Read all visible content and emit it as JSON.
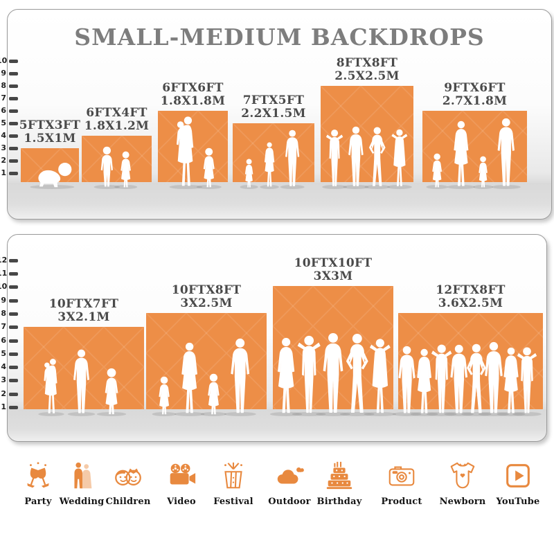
{
  "title": "SMALL-MEDIUM BACKDROPS",
  "accent_color": "#ED8E47",
  "silhouette_color": "#FFFFFF",
  "panels": [
    {
      "name": "small-backdrops",
      "ruler": {
        "min": 1,
        "max": 10
      },
      "backdrops": [
        {
          "size_ft": "5FTX3FT",
          "size_m": "1.5X1M",
          "width_ft": 5,
          "height_ft": 3,
          "people": "crawling-baby"
        },
        {
          "size_ft": "6FTX4FT",
          "size_m": "1.8X1.2M",
          "width_ft": 6,
          "height_ft": 4,
          "people": "boy-and-girl"
        },
        {
          "size_ft": "6FTX6FT",
          "size_m": "1.8X1.8M",
          "width_ft": 6,
          "height_ft": 6,
          "people": "mother-with-baby-and-girl"
        },
        {
          "size_ft": "7FTX5FT",
          "size_m": "2.2X1.5M",
          "width_ft": 7,
          "height_ft": 5,
          "people": "child-woman-man"
        },
        {
          "size_ft": "8FTX8FT",
          "size_m": "2.5X2.5M",
          "width_ft": 8,
          "height_ft": 8,
          "people": "four-adults"
        },
        {
          "size_ft": "9FTX6FT",
          "size_m": "2.7X1.8M",
          "width_ft": 9,
          "height_ft": 6,
          "people": "family-of-four"
        }
      ]
    },
    {
      "name": "medium-backdrops",
      "ruler": {
        "min": 1,
        "max": 12
      },
      "backdrops": [
        {
          "size_ft": "10FTX7FT",
          "size_m": "3X2.1M",
          "width_ft": 10,
          "height_ft": 7,
          "people": "family-of-three"
        },
        {
          "size_ft": "10FTX8FT",
          "size_m": "3X2.5M",
          "width_ft": 10,
          "height_ft": 8,
          "people": "family-of-four-lg"
        },
        {
          "size_ft": "10FTX10FT",
          "size_m": "3X3M",
          "width_ft": 10,
          "height_ft": 10,
          "people": "five-adults"
        },
        {
          "size_ft": "12FTX8FT",
          "size_m": "3.6X2.5M",
          "width_ft": 12,
          "height_ft": 8,
          "people": "crowd"
        }
      ]
    }
  ],
  "categories": [
    {
      "label": "Party",
      "icon": "party-icon"
    },
    {
      "label": "Wedding",
      "icon": "wedding-icon"
    },
    {
      "label": "Children",
      "icon": "children-icon"
    },
    {
      "label": "Video",
      "icon": "video-icon"
    },
    {
      "label": "Festival",
      "icon": "festival-icon"
    },
    {
      "label": "Outdoor",
      "icon": "outdoor-icon"
    },
    {
      "label": "Birthday",
      "icon": "birthday-icon"
    },
    {
      "label": "Product",
      "icon": "product-icon"
    },
    {
      "label": "Newborn",
      "icon": "newborn-icon"
    },
    {
      "label": "YouTube",
      "icon": "youtube-icon"
    }
  ]
}
